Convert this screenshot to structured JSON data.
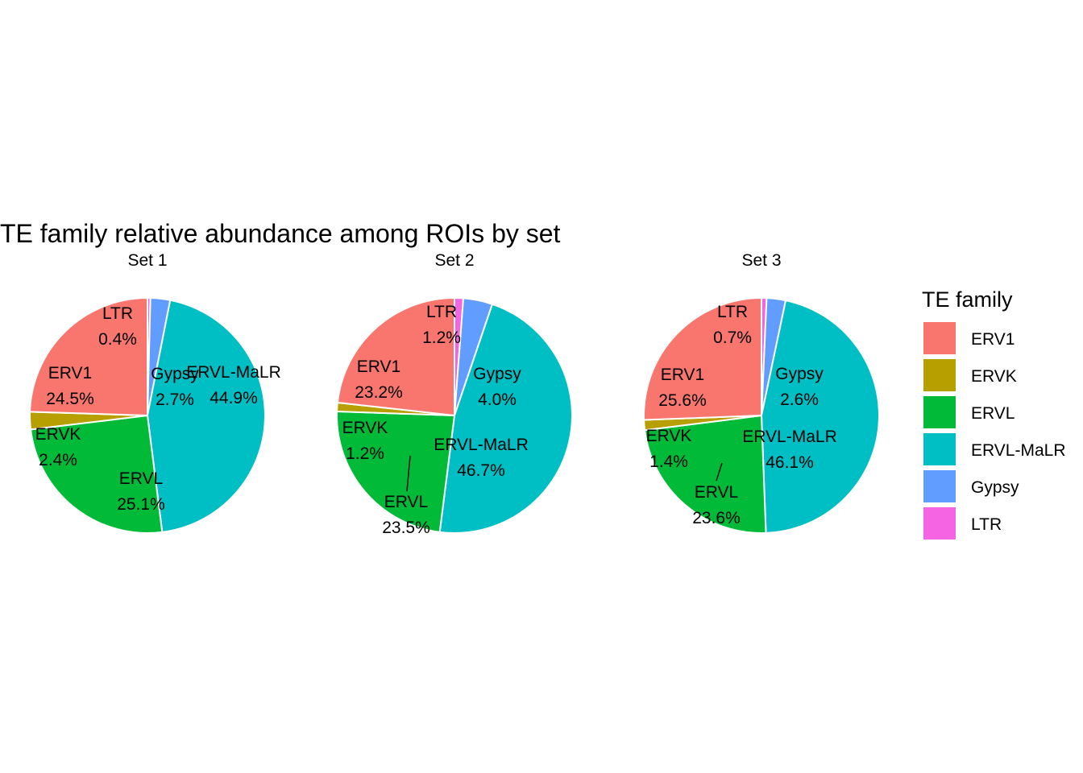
{
  "chart_data": {
    "type": "pie",
    "title": "TE family relative abundance among ROIs by set",
    "legend": {
      "title": "TE family",
      "placement": "right",
      "entries": [
        {
          "name": "ERV1",
          "color": "#F8766D"
        },
        {
          "name": "ERVK",
          "color": "#B79F00"
        },
        {
          "name": "ERVL",
          "color": "#00BA38"
        },
        {
          "name": "ERVL-MaLR",
          "color": "#00BFC4"
        },
        {
          "name": "Gypsy",
          "color": "#619CFF"
        },
        {
          "name": "LTR",
          "color": "#F564E3"
        }
      ]
    },
    "panels": [
      {
        "name": "Set  1",
        "slices": [
          {
            "family": "LTR",
            "value": 0.4,
            "label": "0.4%"
          },
          {
            "family": "Gypsy",
            "value": 2.7,
            "label": "2.7%"
          },
          {
            "family": "ERVL-MaLR",
            "value": 44.9,
            "label": "44.9%"
          },
          {
            "family": "ERVL",
            "value": 25.1,
            "label": "25.1%"
          },
          {
            "family": "ERVK",
            "value": 2.4,
            "label": "2.4%"
          },
          {
            "family": "ERV1",
            "value": 24.5,
            "label": "24.5%"
          }
        ]
      },
      {
        "name": "Set  2",
        "slices": [
          {
            "family": "LTR",
            "value": 1.2,
            "label": "1.2%"
          },
          {
            "family": "Gypsy",
            "value": 4.0,
            "label": "4.0%"
          },
          {
            "family": "ERVL-MaLR",
            "value": 46.7,
            "label": "46.7%"
          },
          {
            "family": "ERVL",
            "value": 23.5,
            "label": "23.5%"
          },
          {
            "family": "ERVK",
            "value": 1.2,
            "label": "1.2%"
          },
          {
            "family": "ERV1",
            "value": 23.2,
            "label": "23.2%"
          }
        ]
      },
      {
        "name": "Set  3",
        "slices": [
          {
            "family": "LTR",
            "value": 0.7,
            "label": "0.7%"
          },
          {
            "family": "Gypsy",
            "value": 2.6,
            "label": "2.6%"
          },
          {
            "family": "ERVL-MaLR",
            "value": 46.1,
            "label": "46.1%"
          },
          {
            "family": "ERVL",
            "value": 23.6,
            "label": "23.6%"
          },
          {
            "family": "ERVK",
            "value": 1.4,
            "label": "1.4%"
          },
          {
            "family": "ERV1",
            "value": 25.6,
            "label": "25.6%"
          }
        ]
      }
    ]
  }
}
